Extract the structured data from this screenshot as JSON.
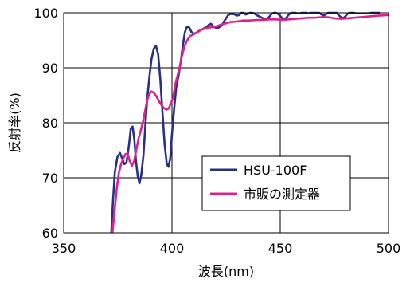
{
  "chart_data": {
    "type": "line",
    "xlabel": "波長(nm)",
    "ylabel": "反射率(%)",
    "xlim": [
      350,
      500
    ],
    "ylim": [
      60,
      100
    ],
    "x_ticks": [
      350,
      400,
      450,
      500
    ],
    "y_ticks": [
      60,
      70,
      80,
      90,
      100
    ],
    "grid": true,
    "legend_position": "lower-right",
    "series": [
      {
        "name": "HSU-100F",
        "color": "#2a2f86",
        "points": [
          [
            372,
            60
          ],
          [
            372.8,
            66
          ],
          [
            373.6,
            71
          ],
          [
            374.8,
            73.8
          ],
          [
            376,
            74.5
          ],
          [
            377,
            73.5
          ],
          [
            378,
            72.5
          ],
          [
            379,
            72.8
          ],
          [
            380,
            75.5
          ],
          [
            381,
            79
          ],
          [
            381.8,
            79.3
          ],
          [
            382.6,
            77
          ],
          [
            383.4,
            73
          ],
          [
            384.2,
            70.3
          ],
          [
            385,
            69
          ],
          [
            385.8,
            70.5
          ],
          [
            386.8,
            74
          ],
          [
            387.6,
            79
          ],
          [
            388.5,
            84
          ],
          [
            389.5,
            88
          ],
          [
            390.5,
            91.5
          ],
          [
            391.6,
            93.5
          ],
          [
            392.6,
            94
          ],
          [
            393.6,
            92.5
          ],
          [
            394.6,
            88
          ],
          [
            395.6,
            82
          ],
          [
            396.6,
            76
          ],
          [
            397.6,
            72.5
          ],
          [
            398.4,
            72
          ],
          [
            399.2,
            73.5
          ],
          [
            400,
            78
          ],
          [
            401,
            82.5
          ],
          [
            402,
            86.5
          ],
          [
            403,
            88.5
          ],
          [
            404,
            91
          ],
          [
            405,
            94
          ],
          [
            406,
            96.5
          ],
          [
            407,
            97.5
          ],
          [
            408,
            97.3
          ],
          [
            409,
            96.5
          ],
          [
            410,
            96.2
          ],
          [
            411,
            96.3
          ],
          [
            412,
            96.6
          ],
          [
            413,
            96.8
          ],
          [
            414,
            97
          ],
          [
            415,
            97.2
          ],
          [
            416,
            97.4
          ],
          [
            417,
            97.8
          ],
          [
            418,
            98
          ],
          [
            419,
            97.6
          ],
          [
            420,
            97.3
          ],
          [
            421,
            97.2
          ],
          [
            422,
            97.4
          ],
          [
            423,
            97.7
          ],
          [
            424,
            98.4
          ],
          [
            425,
            99
          ],
          [
            426,
            99.6
          ],
          [
            427,
            99.8
          ],
          [
            428,
            99.8
          ],
          [
            429,
            99.7
          ],
          [
            430,
            99.5
          ],
          [
            431,
            99.6
          ],
          [
            432,
            100
          ],
          [
            433,
            100
          ],
          [
            434,
            99.7
          ],
          [
            435,
            99.8
          ],
          [
            436,
            100
          ],
          [
            437,
            100
          ],
          [
            438,
            99.9
          ],
          [
            439,
            99.6
          ],
          [
            440,
            99.4
          ],
          [
            441,
            99.2
          ],
          [
            442,
            99.0
          ],
          [
            443,
            98.8
          ],
          [
            444,
            98.9
          ],
          [
            445,
            99.3
          ],
          [
            446,
            99.8
          ],
          [
            447,
            100
          ],
          [
            448,
            100
          ],
          [
            449,
            99.8
          ],
          [
            450,
            99.4
          ],
          [
            451,
            99.0
          ],
          [
            452,
            98.8
          ],
          [
            453,
            99.2
          ],
          [
            454,
            99.7
          ],
          [
            455,
            100
          ],
          [
            456,
            100
          ],
          [
            457,
            100
          ],
          [
            458,
            99.9
          ],
          [
            459,
            99.9
          ],
          [
            460,
            100
          ],
          [
            461,
            100
          ],
          [
            462,
            100
          ],
          [
            463,
            99.9
          ],
          [
            464,
            100
          ],
          [
            465,
            100
          ],
          [
            466,
            100
          ],
          [
            467,
            100
          ],
          [
            468,
            100
          ],
          [
            469,
            99.7
          ],
          [
            470,
            99.5
          ],
          [
            471,
            99.7
          ],
          [
            472,
            100
          ],
          [
            473,
            100
          ],
          [
            474,
            100
          ],
          [
            475,
            100
          ],
          [
            476,
            100
          ],
          [
            477,
            99.6
          ],
          [
            478,
            99.2
          ],
          [
            479,
            99.0
          ],
          [
            480,
            99.3
          ],
          [
            481,
            99.8
          ],
          [
            482,
            100
          ],
          [
            483,
            100
          ],
          [
            484,
            100
          ],
          [
            485,
            99.9
          ],
          [
            486,
            99.9
          ],
          [
            487,
            99.9
          ],
          [
            488,
            99.9
          ],
          [
            489,
            99.9
          ],
          [
            490,
            99.9
          ],
          [
            491,
            99.9
          ],
          [
            492,
            100
          ],
          [
            493,
            100
          ],
          [
            494,
            100
          ],
          [
            495,
            100
          ],
          [
            496,
            100
          ]
        ]
      },
      {
        "name": "市販の測定器",
        "color": "#e0218a",
        "points": [
          [
            372.5,
            60
          ],
          [
            373.5,
            64
          ],
          [
            374.5,
            68
          ],
          [
            375.5,
            71
          ],
          [
            376.5,
            72.5
          ],
          [
            377.5,
            73.5
          ],
          [
            378.5,
            74.3
          ],
          [
            379.5,
            74.4
          ],
          [
            380.5,
            73
          ],
          [
            381.5,
            72.2
          ],
          [
            382.5,
            73
          ],
          [
            383.5,
            75
          ],
          [
            384.5,
            77
          ],
          [
            385.5,
            78.5
          ],
          [
            386.5,
            80
          ],
          [
            387.5,
            82
          ],
          [
            388.5,
            84
          ],
          [
            389.5,
            85.2
          ],
          [
            390.5,
            85.7
          ],
          [
            391.5,
            85.5
          ],
          [
            392.5,
            85
          ],
          [
            393.5,
            84.3
          ],
          [
            394.5,
            83.6
          ],
          [
            395.5,
            83
          ],
          [
            396.5,
            82.6
          ],
          [
            397.5,
            82.4
          ],
          [
            398.5,
            82.6
          ],
          [
            399.5,
            83.5
          ],
          [
            400.5,
            84.5
          ],
          [
            401.5,
            87
          ],
          [
            402.5,
            88.5
          ],
          [
            403.5,
            90
          ],
          [
            404.5,
            92
          ],
          [
            405.5,
            93.5
          ],
          [
            406.5,
            94.6
          ],
          [
            407.5,
            95.3
          ],
          [
            408.5,
            95.8
          ],
          [
            409.5,
            96
          ],
          [
            410.5,
            96.2
          ],
          [
            411.5,
            96.4
          ],
          [
            412.5,
            96.7
          ],
          [
            413.5,
            96.9
          ],
          [
            415,
            97.1
          ],
          [
            417,
            97.3
          ],
          [
            419,
            97.4
          ],
          [
            421,
            97.6
          ],
          [
            423,
            97.9
          ],
          [
            425,
            98.1
          ],
          [
            427,
            98.3
          ],
          [
            430,
            98.4
          ],
          [
            433,
            98.6
          ],
          [
            436,
            98.6
          ],
          [
            439,
            98.7
          ],
          [
            442,
            98.7
          ],
          [
            445,
            98.8
          ],
          [
            448,
            98.8
          ],
          [
            451,
            98.7
          ],
          [
            454,
            98.8
          ],
          [
            457,
            98.9
          ],
          [
            460,
            99.0
          ],
          [
            463,
            99.1
          ],
          [
            466,
            99.1
          ],
          [
            469,
            99.2
          ],
          [
            472,
            99.2
          ],
          [
            475,
            99.0
          ],
          [
            478,
            98.9
          ],
          [
            481,
            99.0
          ],
          [
            484,
            99.1
          ],
          [
            487,
            99.2
          ],
          [
            490,
            99.3
          ],
          [
            493,
            99.4
          ],
          [
            496,
            99.5
          ],
          [
            500,
            99.6
          ]
        ]
      }
    ]
  }
}
